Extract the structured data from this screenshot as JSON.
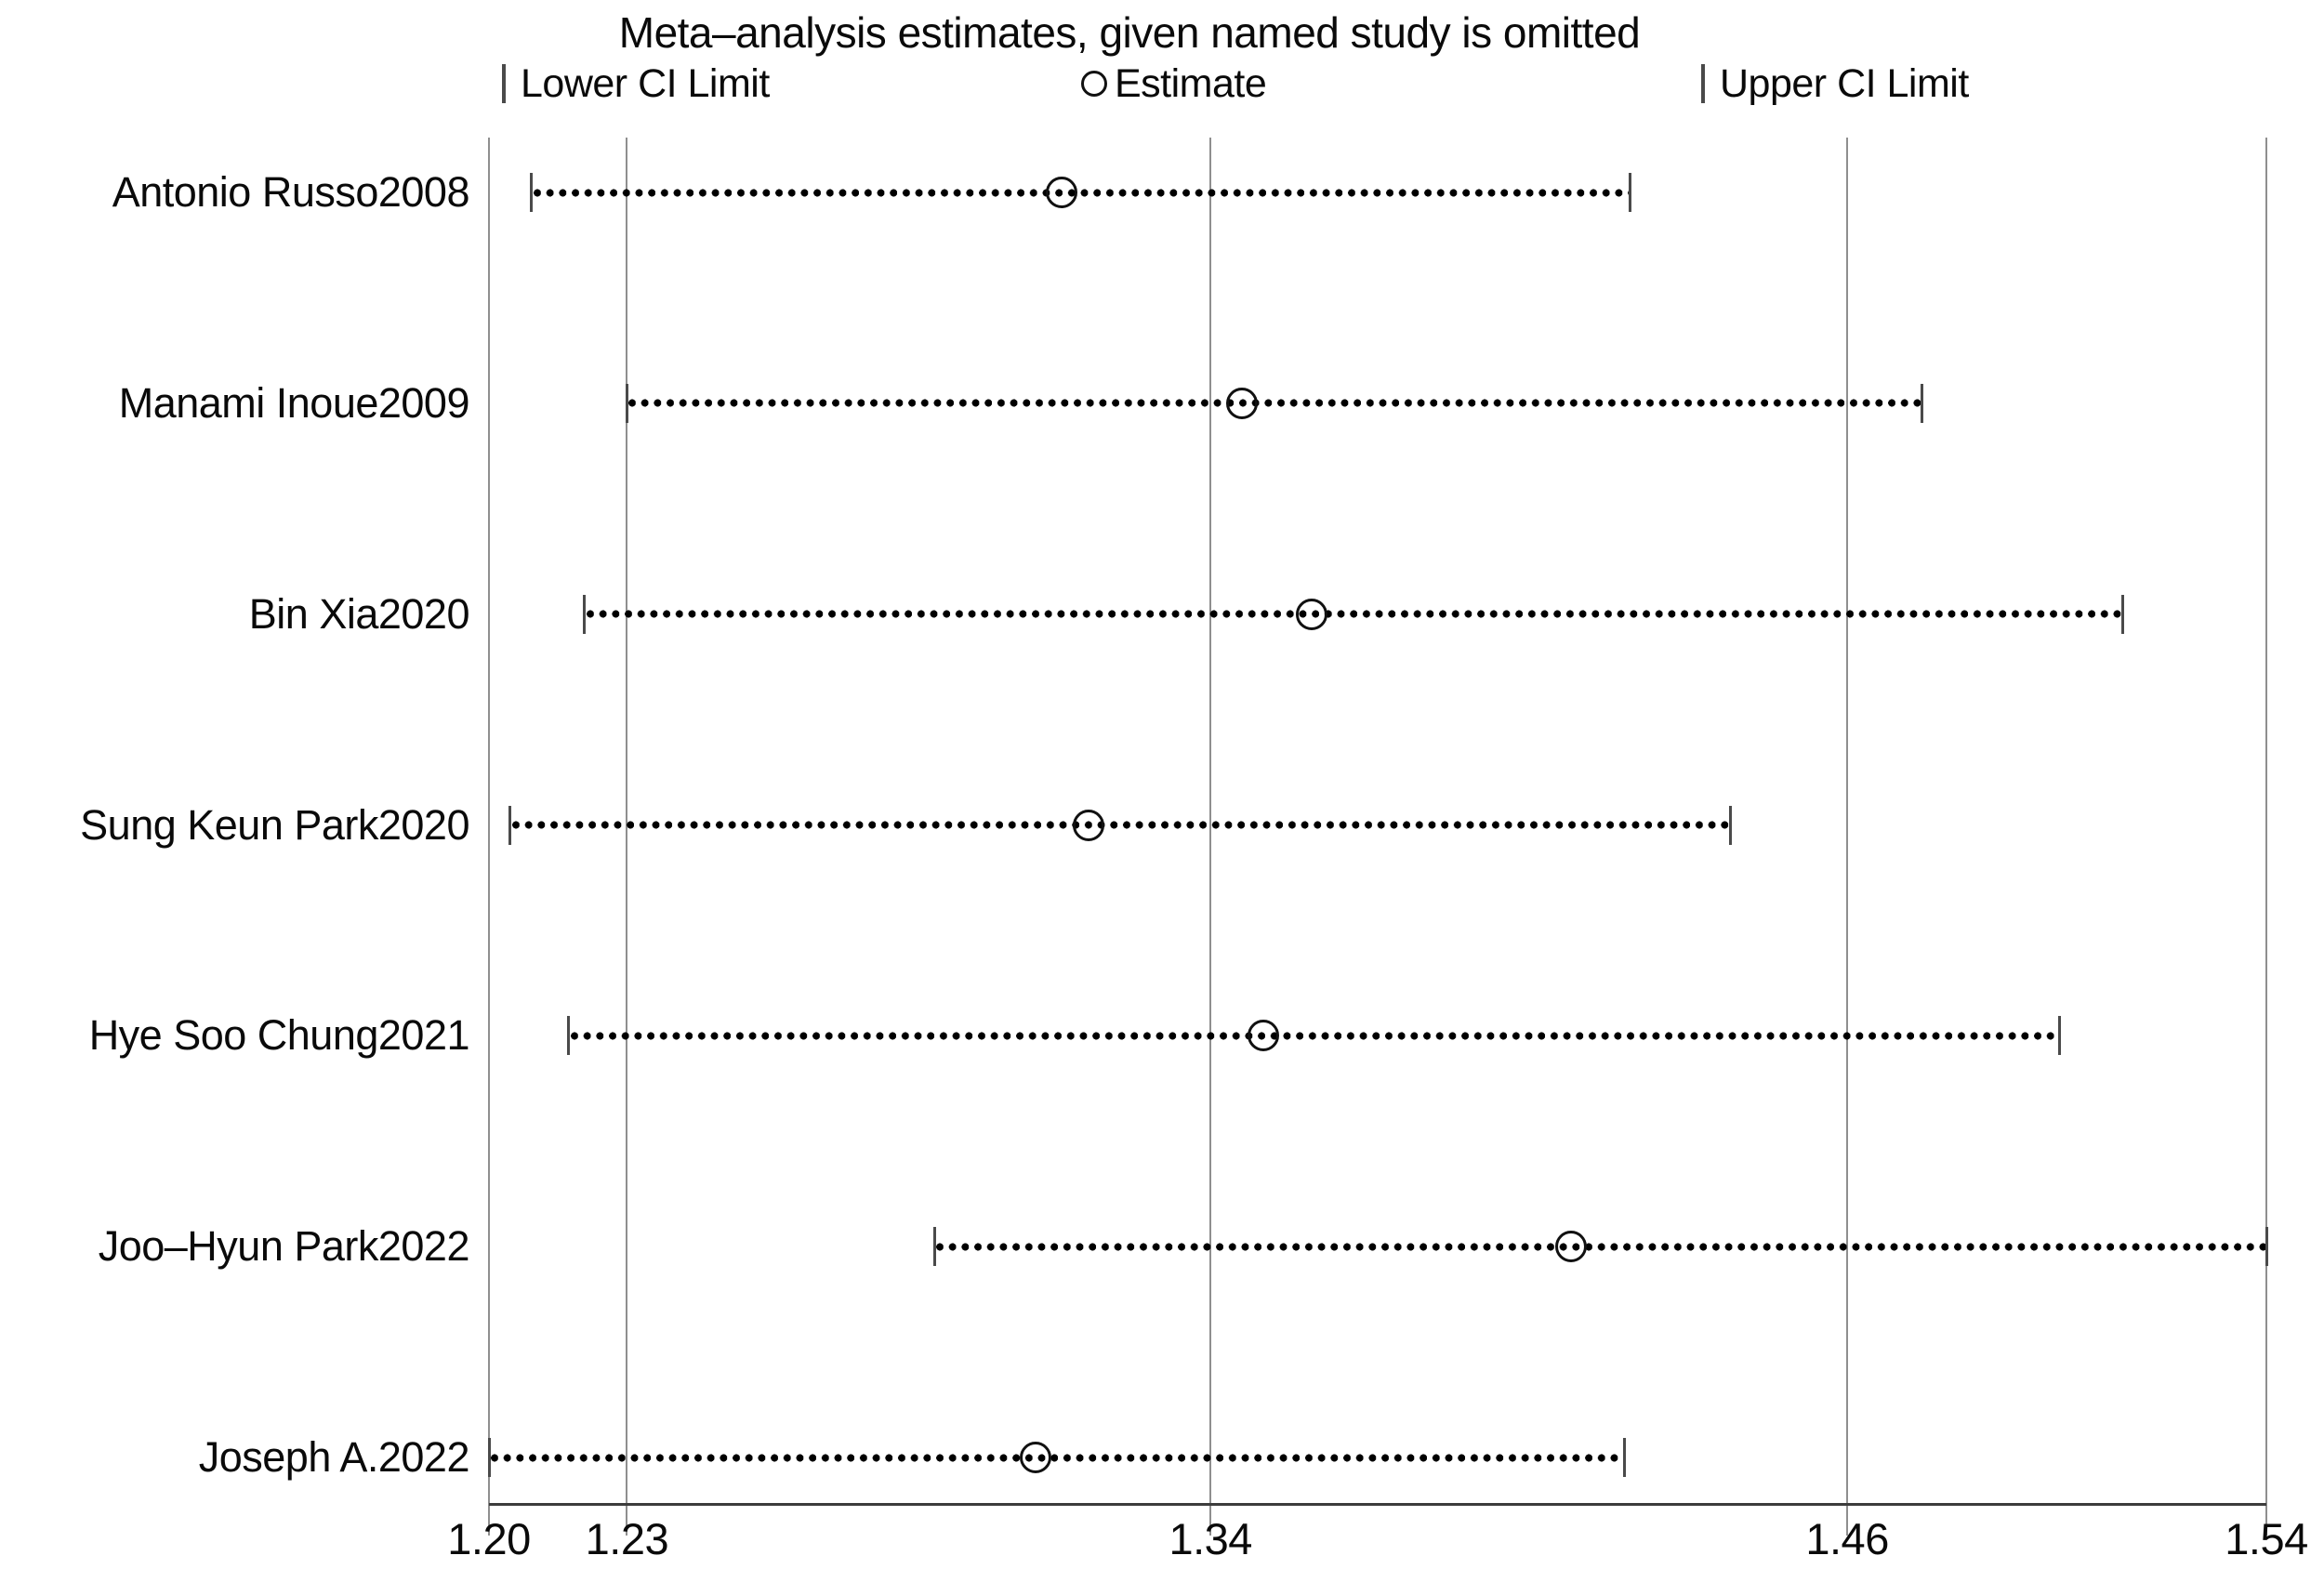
{
  "title": "Meta–analysis estimates, given named study is omitted",
  "legend": {
    "lower_label": "Lower CI Limit",
    "estimate_label": "Estimate",
    "upper_label": "Upper CI Limit",
    "lower_marker_icon": "ci-limit-bar-icon",
    "estimate_marker_icon": "open-circle-icon",
    "upper_marker_icon": "ci-limit-bar-icon"
  },
  "chart_data": {
    "type": "scatter",
    "subtype": "leave-one-out-sensitivity-forest-plot",
    "title": "Meta–analysis estimates, given named study is omitted",
    "xlabel": "",
    "ylabel": "",
    "grid": "vertical-gridlines-on",
    "legend_position": "top",
    "x_axis": {
      "min": 1.204,
      "max": 1.539,
      "ticks": [
        {
          "value": 1.204,
          "label": "1.20"
        },
        {
          "value": 1.23,
          "label": "1.23"
        },
        {
          "value": 1.34,
          "label": "1.34"
        },
        {
          "value": 1.46,
          "label": "1.46"
        },
        {
          "value": 1.539,
          "label": "1.54"
        }
      ]
    },
    "studies": [
      {
        "label": "Antonio Russo2008",
        "lower": 1.212,
        "estimate": 1.312,
        "upper": 1.419
      },
      {
        "label": "Manami Inoue2009",
        "lower": 1.23,
        "estimate": 1.346,
        "upper": 1.474
      },
      {
        "label": "Bin Xia2020",
        "lower": 1.222,
        "estimate": 1.359,
        "upper": 1.512
      },
      {
        "label": "Sung Keun Park2020",
        "lower": 1.208,
        "estimate": 1.317,
        "upper": 1.438
      },
      {
        "label": "Hye Soo Chung2021",
        "lower": 1.219,
        "estimate": 1.35,
        "upper": 1.5
      },
      {
        "label": "Joo–Hyun Park2022",
        "lower": 1.288,
        "estimate": 1.408,
        "upper": 1.539
      },
      {
        "label": "Joseph A.2022",
        "lower": 1.204,
        "estimate": 1.307,
        "upper": 1.418
      }
    ]
  },
  "colors": {
    "background": "#ffffff",
    "foreground": "#000000",
    "gridline": "#8f8f8f",
    "axis_line": "#3c3c3c"
  }
}
